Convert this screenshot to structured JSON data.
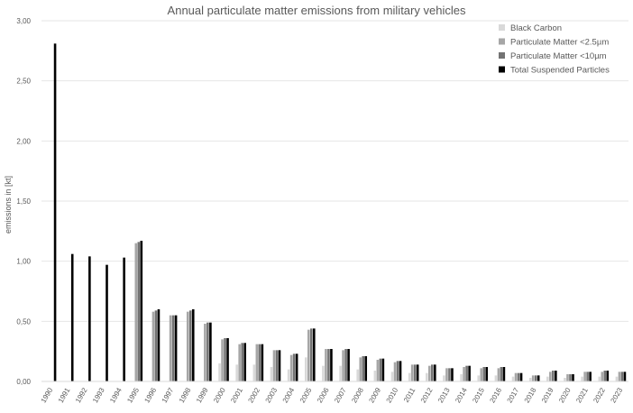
{
  "chart_data": {
    "type": "bar",
    "title": "Annual particulate matter emissions from military vehicles",
    "xlabel": "",
    "ylabel": "emissions in [kt]",
    "ylim": [
      0,
      3.0
    ],
    "yticks": [
      "0,00",
      "0,50",
      "1,00",
      "1,50",
      "2,00",
      "2,50",
      "3,00"
    ],
    "grid": "horizontal",
    "legend_position": "top-right",
    "categories": [
      "1990",
      "1991",
      "1992",
      "1993",
      "1994",
      "1995",
      "1996",
      "1997",
      "1998",
      "1999",
      "2000",
      "2001",
      "2002",
      "2003",
      "2004",
      "2005",
      "2006",
      "2007",
      "2008",
      "2009",
      "2010",
      "2011",
      "2012",
      "2013",
      "2014",
      "2015",
      "2016",
      "2017",
      "2018",
      "2019",
      "2020",
      "2021",
      "2022",
      "2023"
    ],
    "series": [
      {
        "name": "Black Carbon",
        "color": "#d9d9d9",
        "values": [
          0,
          0,
          0,
          0,
          0,
          0,
          0,
          0,
          0,
          0,
          0.15,
          0.14,
          0.14,
          0.12,
          0.1,
          0.2,
          0.13,
          0.13,
          0.1,
          0.09,
          0.08,
          0.07,
          0.07,
          0.05,
          0.06,
          0.05,
          0.05,
          0.04,
          0.03,
          0.04,
          0.03,
          0.04,
          0.04,
          0.04
        ]
      },
      {
        "name": "Particulate Matter <2.5µm",
        "color": "#a6a6a6",
        "values": [
          0,
          0,
          0,
          0,
          0,
          1.15,
          0.58,
          0.55,
          0.58,
          0.48,
          0.35,
          0.31,
          0.31,
          0.26,
          0.22,
          0.43,
          0.27,
          0.26,
          0.2,
          0.18,
          0.16,
          0.14,
          0.13,
          0.11,
          0.12,
          0.11,
          0.11,
          0.07,
          0.05,
          0.08,
          0.06,
          0.08,
          0.08,
          0.08
        ]
      },
      {
        "name": "Particulate Matter <10µm",
        "color": "#737373",
        "values": [
          0,
          0,
          0,
          0,
          0,
          1.16,
          0.59,
          0.55,
          0.59,
          0.49,
          0.36,
          0.32,
          0.31,
          0.26,
          0.23,
          0.44,
          0.27,
          0.27,
          0.21,
          0.19,
          0.17,
          0.14,
          0.14,
          0.11,
          0.13,
          0.12,
          0.12,
          0.07,
          0.05,
          0.09,
          0.06,
          0.08,
          0.09,
          0.08
        ]
      },
      {
        "name": "Total Suspended Particles",
        "color": "#000000",
        "values": [
          2.81,
          1.06,
          1.04,
          0.97,
          1.03,
          1.17,
          0.6,
          0.55,
          0.6,
          0.49,
          0.36,
          0.32,
          0.31,
          0.26,
          0.23,
          0.44,
          0.27,
          0.27,
          0.21,
          0.19,
          0.17,
          0.14,
          0.14,
          0.11,
          0.13,
          0.12,
          0.12,
          0.07,
          0.05,
          0.09,
          0.06,
          0.08,
          0.09,
          0.08
        ]
      }
    ]
  }
}
